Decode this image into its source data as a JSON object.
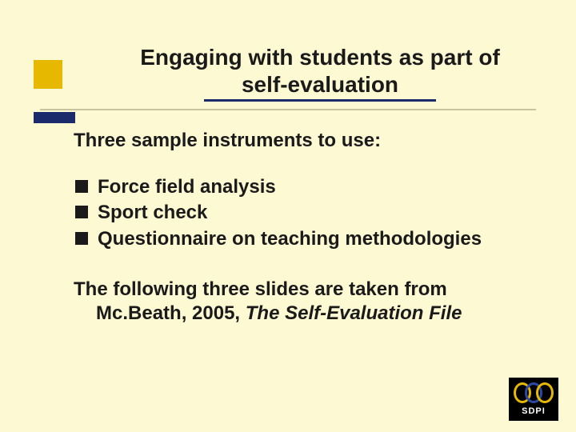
{
  "slide": {
    "background_color": "#fdf9d2",
    "accent_yellow": "#e6b800",
    "accent_navy": "#1a2a6b",
    "title_line1": "Engaging with students as part of",
    "title_line2": "self-evaluation",
    "lead": "Three sample instruments to use:",
    "bullets": [
      "Force field analysis",
      "Sport check",
      "Questionnaire on teaching methodologies"
    ],
    "footnote_line1": "The following three slides are taken from",
    "footnote_line2_plain": "Mc.Beath, 2005, ",
    "footnote_line2_italic": "The Self-Evaluation File",
    "logo_text": "SDPI"
  }
}
